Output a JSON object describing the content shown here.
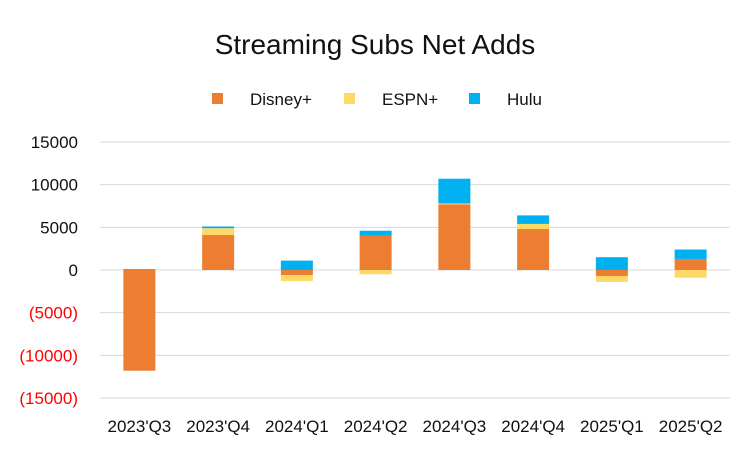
{
  "chart_data": {
    "type": "bar",
    "stacked": true,
    "title": "Streaming Subs Net Adds",
    "xlabel": "",
    "ylabel": "",
    "ylim": [
      -15000,
      15000
    ],
    "yticks": [
      {
        "value": 15000,
        "label": "15000"
      },
      {
        "value": 10000,
        "label": "10000"
      },
      {
        "value": 5000,
        "label": "5000"
      },
      {
        "value": 0,
        "label": "0"
      },
      {
        "value": -5000,
        "label": "(5000)"
      },
      {
        "value": -10000,
        "label": "(10000)"
      },
      {
        "value": -15000,
        "label": "(15000)"
      }
    ],
    "grid": true,
    "legend_position": "top",
    "negative_tick_color": "#ff0000",
    "positive_tick_color": "#111111",
    "categories": [
      "2023'Q3",
      "2023'Q4",
      "2024'Q1",
      "2024'Q2",
      "2024'Q3",
      "2024'Q4",
      "2025'Q1",
      "2025'Q2"
    ],
    "series": [
      {
        "name": "Disney+",
        "color": "#ed7d31",
        "values": [
          -11800,
          4100,
          -600,
          4000,
          7700,
          4800,
          -700,
          1300
        ]
      },
      {
        "name": "ESPN+",
        "color": "#ffd966",
        "values": [
          0,
          800,
          -700,
          -500,
          100,
          600,
          -700,
          -900
        ]
      },
      {
        "name": "Hulu",
        "color": "#00b0f0",
        "values": [
          100,
          200,
          1100,
          600,
          2900,
          1000,
          1500,
          1100
        ]
      }
    ]
  }
}
